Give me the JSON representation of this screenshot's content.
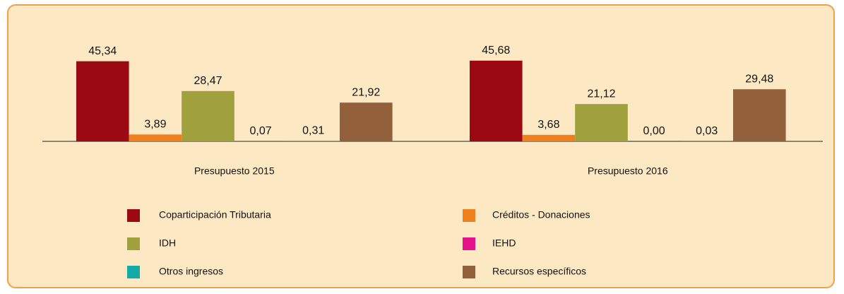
{
  "chart_data": {
    "type": "bar",
    "categories": [
      "Presupuesto 2015",
      "Presupuesto 2016"
    ],
    "series": [
      {
        "name": "Coparticipación Tributaria",
        "color": "#9b0a12",
        "values": [
          45.34,
          45.68
        ],
        "value_labels": [
          "45,34",
          "45,68"
        ]
      },
      {
        "name": "Créditos - Donaciones",
        "color": "#f07f1e",
        "values": [
          3.89,
          3.68
        ],
        "value_labels": [
          "3,89",
          "3,68"
        ]
      },
      {
        "name": "IDH",
        "color": "#a0a03c",
        "values": [
          28.47,
          21.12
        ],
        "value_labels": [
          "28,47",
          "21,12"
        ]
      },
      {
        "name": "IEHD",
        "color": "#e5128c",
        "values": [
          0.07,
          0.0
        ],
        "value_labels": [
          "0,07",
          "0,00"
        ]
      },
      {
        "name": "Otros ingresos",
        "color": "#14aaa5",
        "values": [
          0.31,
          0.03
        ],
        "value_labels": [
          "0,31",
          "0,03"
        ]
      },
      {
        "name": "Recursos específicos",
        "color": "#92603a",
        "values": [
          21.92,
          29.48
        ],
        "value_labels": [
          "21,92",
          "29,48"
        ]
      }
    ],
    "ylim": [
      0,
      50
    ],
    "grid": false
  }
}
